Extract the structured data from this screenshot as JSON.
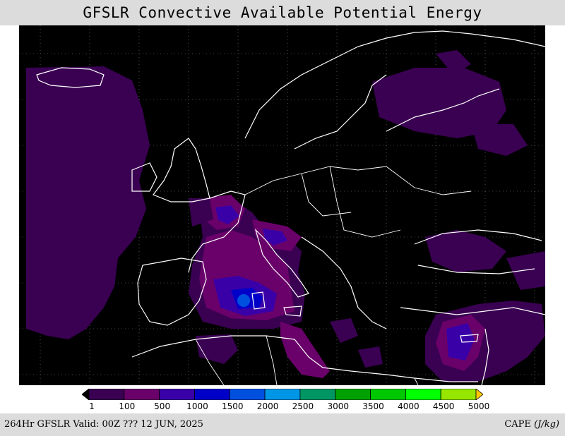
{
  "header": {
    "title": "GFSLR Convective Available Potential Energy"
  },
  "legend": {
    "colors": [
      "#000000",
      "#3a0052",
      "#6a006a",
      "#3a00a8",
      "#0000c8",
      "#0050e0",
      "#0096e6",
      "#009664",
      "#00a000",
      "#00c800",
      "#00ff00",
      "#96e600",
      "#ffc800"
    ],
    "labels": [
      "1",
      "100",
      "500",
      "1000",
      "1500",
      "2000",
      "2500",
      "3000",
      "3500",
      "4000",
      "4500",
      "5000"
    ]
  },
  "footer": {
    "valid_text": "264Hr GFSLR Valid: 00Z ??? 12 JUN, 2025",
    "units_label": "CAPE",
    "units_value": "(J/kg)"
  },
  "map": {
    "background": "#000000",
    "coastline_color": "#ffffff",
    "grid_color": "#888888"
  }
}
